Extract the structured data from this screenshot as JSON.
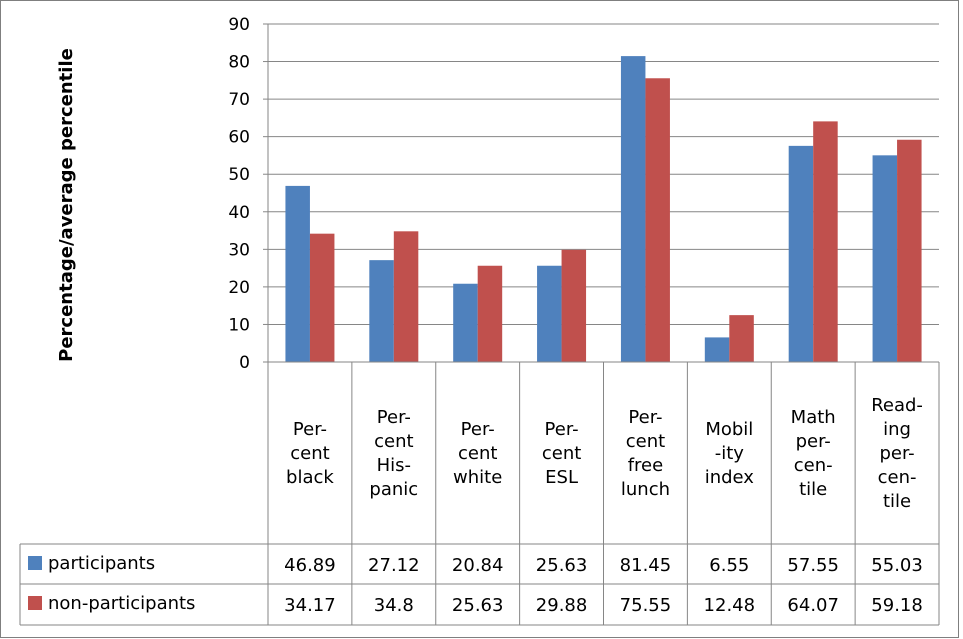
{
  "chart_data": {
    "type": "bar",
    "title": "",
    "xlabel": "",
    "ylabel": "Percentage/average percentile",
    "ylim": [
      0,
      90
    ],
    "yticks": [
      0,
      10,
      20,
      30,
      40,
      50,
      60,
      70,
      80,
      90
    ],
    "grid": true,
    "legend": "data-table",
    "categories": [
      [
        "Per-",
        "cent",
        "black"
      ],
      [
        "Per-",
        "cent",
        "His-",
        "panic"
      ],
      [
        "Per-",
        "cent",
        "white"
      ],
      [
        "Per-",
        "cent",
        "ESL"
      ],
      [
        "Per-",
        "cent",
        "free",
        "lunch"
      ],
      [
        "Mobil",
        "-ity",
        "index"
      ],
      [
        "Math",
        "per-",
        "cen-",
        "tile"
      ],
      [
        "Read-",
        "ing",
        "per-",
        "cen-",
        "tile"
      ]
    ],
    "series": [
      {
        "name": "participants",
        "color": "#4f81bd",
        "values": [
          46.89,
          27.12,
          20.84,
          25.63,
          81.45,
          6.55,
          57.55,
          55.03
        ],
        "labels": [
          "46.89",
          "27.12",
          "20.84",
          "25.63",
          "81.45",
          "6.55",
          "57.55",
          "55.03"
        ]
      },
      {
        "name": "non-participants",
        "color": "#c0504d",
        "values": [
          34.17,
          34.8,
          25.63,
          29.88,
          75.55,
          12.48,
          64.07,
          59.18
        ],
        "labels": [
          "34.17",
          "34.8",
          "25.63",
          "29.88",
          "75.55",
          "12.48",
          "64.07",
          "59.18"
        ]
      }
    ]
  }
}
